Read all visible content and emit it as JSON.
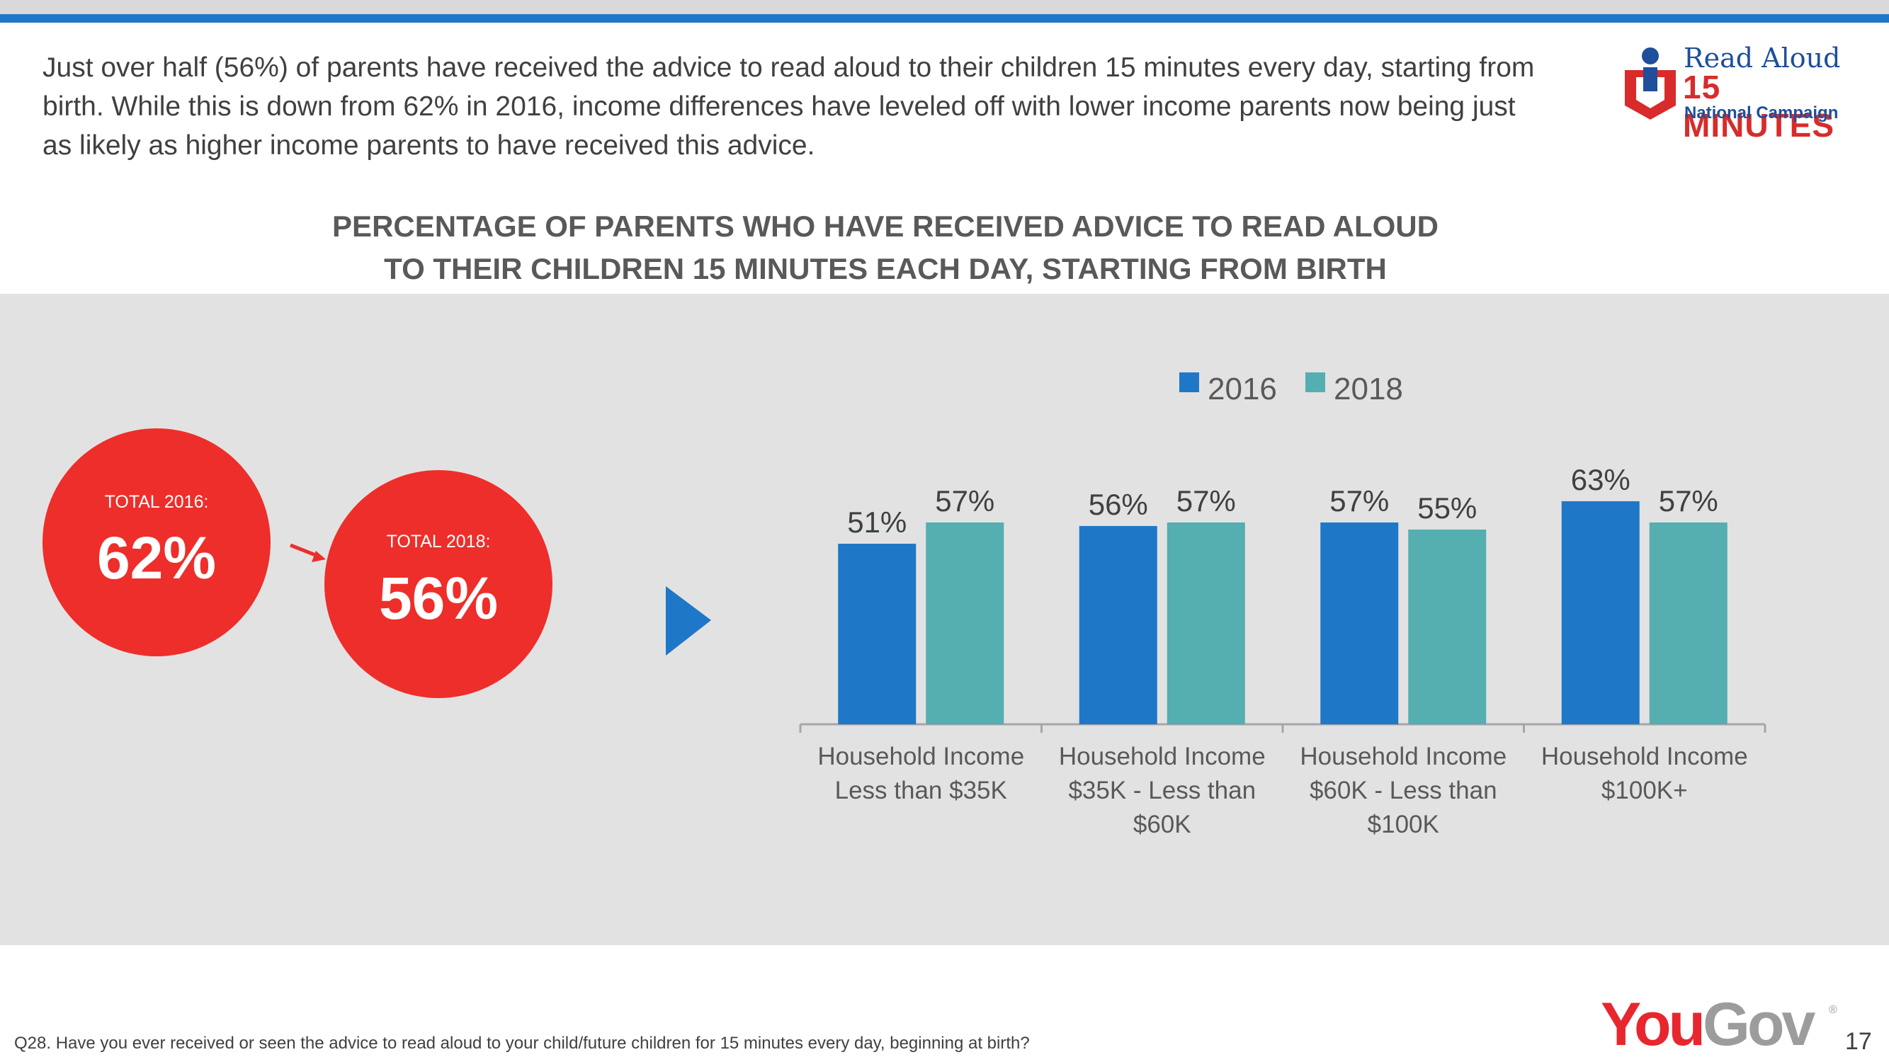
{
  "intro_text": "Just over half (56%) of parents have received the advice to read aloud to their children 15 minutes every day, starting from birth. While this is down from 62% in 2016, income differences have leveled off with lower income parents now being just as likely as higher income parents to have received this advice.",
  "logo": {
    "line1": "Read Aloud",
    "line2": "15 MINUTES",
    "line3": "National Campaign"
  },
  "totals": {
    "total_2016_label": "TOTAL 2016:",
    "total_2016_value": "62%",
    "total_2018_label": "TOTAL 2018:",
    "total_2018_value": "56%"
  },
  "colors": {
    "accent_blue": "#1f77c8",
    "teal": "#55aeb0",
    "red": "#ee2e2a",
    "panel": "#e2e2e2"
  },
  "chart_data": {
    "type": "bar",
    "title_lines": [
      "PERCENTAGE OF PARENTS WHO HAVE RECEIVED ADVICE TO READ ALOUD",
      "TO THEIR CHILDREN 15 MINUTES EACH DAY, STARTING FROM BIRTH"
    ],
    "categories": [
      [
        "Household Income",
        "Less than $35K"
      ],
      [
        "Household Income",
        "$35K - Less than",
        "$60K"
      ],
      [
        "Household Income",
        "$60K - Less than",
        "$100K"
      ],
      [
        "Household Income",
        "$100K+"
      ]
    ],
    "series": [
      {
        "name": "2016",
        "color": "#1f77c8",
        "values": [
          51,
          56,
          57,
          63
        ],
        "labels": [
          "51%",
          "56%",
          "57%",
          "63%"
        ]
      },
      {
        "name": "2018",
        "color": "#55aeb0",
        "values": [
          57,
          57,
          55,
          57
        ],
        "labels": [
          "57%",
          "57%",
          "55%",
          "57%"
        ]
      }
    ],
    "ylim": [
      0,
      100
    ],
    "legend_position": "top",
    "grid": false
  },
  "footnote": "Q28. Have you ever received or seen the advice to read aloud to your child/future children for 15 minutes every day, beginning at birth?",
  "brand": {
    "you": "You",
    "gov": "Gov",
    "registered": "®"
  },
  "page_number": "17"
}
